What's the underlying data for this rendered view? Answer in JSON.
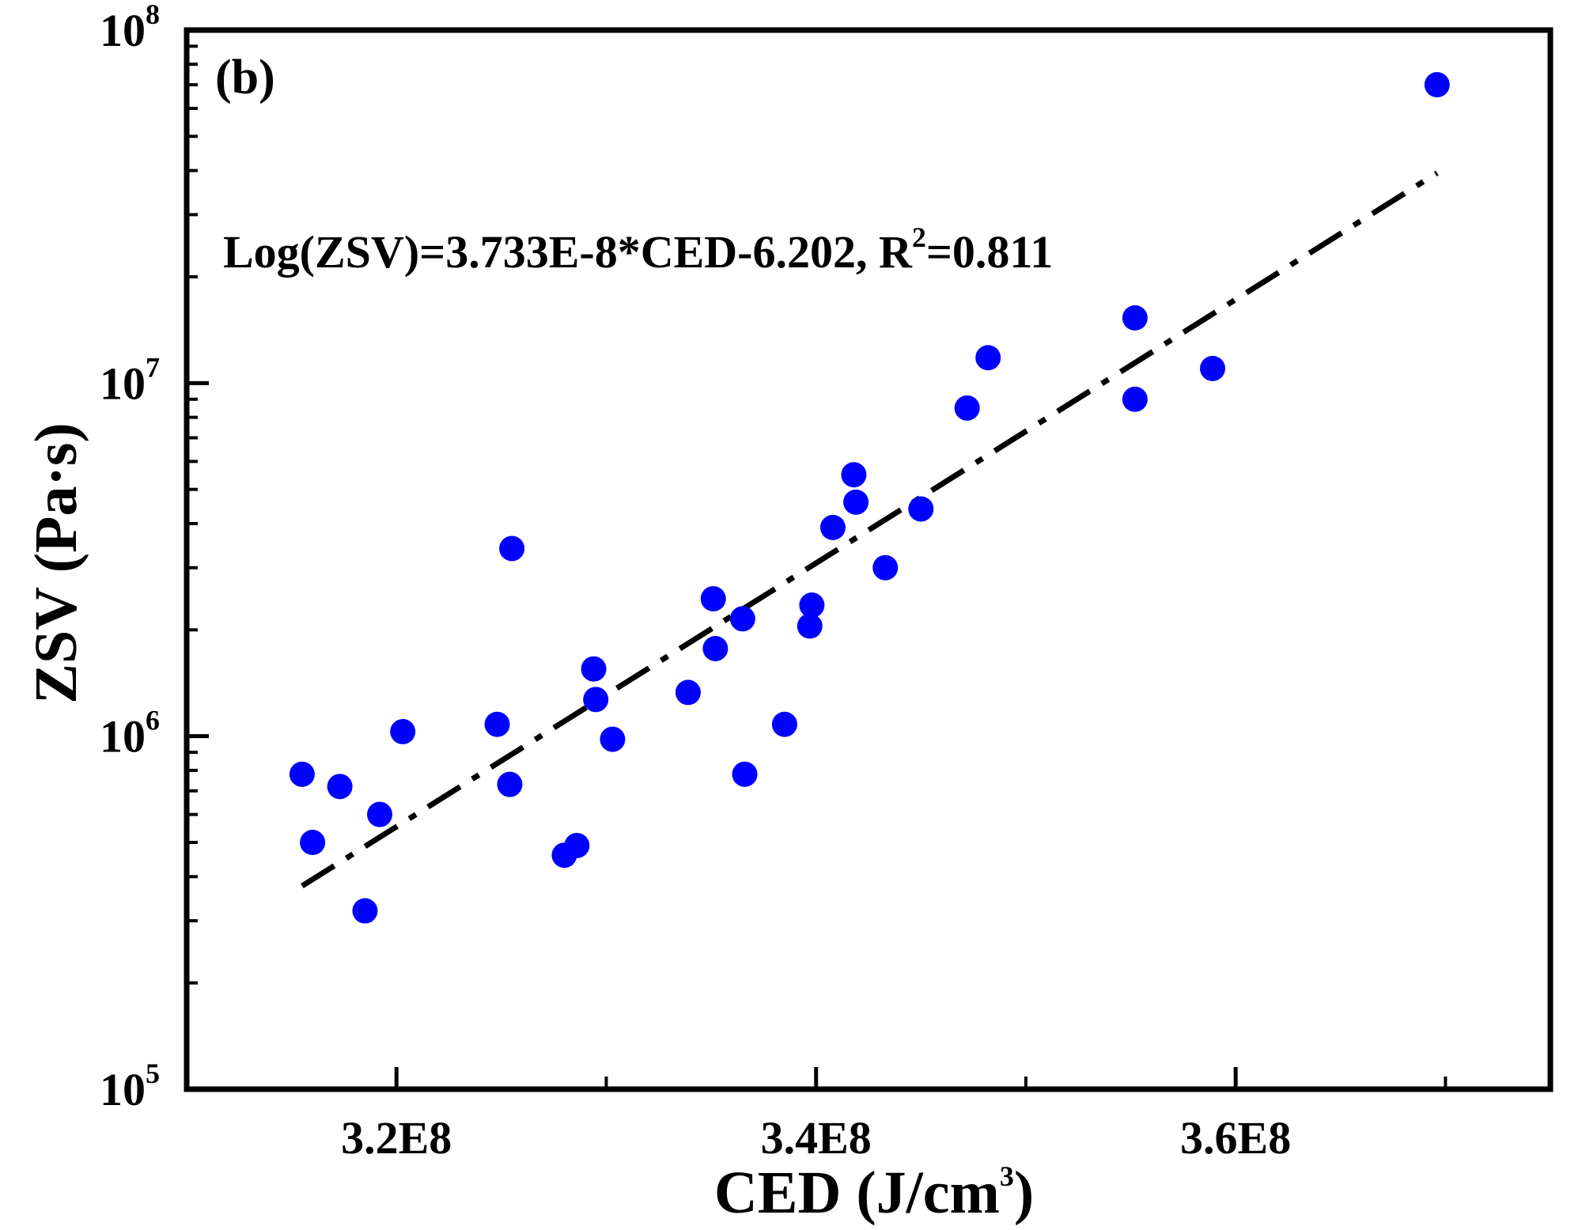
{
  "chart_data": {
    "type": "scatter",
    "panel_label": "(b)",
    "xlabel": {
      "text": "CED (J/cm",
      "sup": "3",
      "tail": ")"
    },
    "ylabel": "ZSV (Pa·s)",
    "x_scale": "linear",
    "y_scale": "log",
    "xlim": [
      310000000,
      375000000
    ],
    "ylim": [
      100000,
      100000000
    ],
    "x_ticks": [
      {
        "value": 320000000,
        "label": "3.2E8"
      },
      {
        "value": 340000000,
        "label": "3.4E8"
      },
      {
        "value": 360000000,
        "label": "3.6E8"
      }
    ],
    "x_minor_ticks": [
      330000000,
      350000000,
      370000000
    ],
    "y_ticks": [
      {
        "value": 100000,
        "base": "10",
        "exp": "5"
      },
      {
        "value": 1000000,
        "base": "10",
        "exp": "6"
      },
      {
        "value": 10000000,
        "base": "10",
        "exp": "7"
      },
      {
        "value": 100000000,
        "base": "10",
        "exp": "8"
      }
    ],
    "grid": false,
    "annotation": {
      "prefix": "Log(ZSV)=3.733E-8*CED-6.202, R",
      "sup": "2",
      "suffix": "=0.811"
    },
    "fit": {
      "slope": 3.733e-08,
      "intercept": -6.202,
      "x_range": [
        315500000,
        369600000
      ],
      "style": "dash-dot"
    },
    "points": [
      {
        "x": 315500000,
        "y": 780000
      },
      {
        "x": 316000000,
        "y": 500000
      },
      {
        "x": 317300000,
        "y": 720000
      },
      {
        "x": 318500000,
        "y": 320000
      },
      {
        "x": 319200000,
        "y": 600000
      },
      {
        "x": 320300000,
        "y": 1030000
      },
      {
        "x": 324800000,
        "y": 1080000
      },
      {
        "x": 325400000,
        "y": 730000
      },
      {
        "x": 325500000,
        "y": 3400000
      },
      {
        "x": 328000000,
        "y": 460000
      },
      {
        "x": 328600000,
        "y": 490000
      },
      {
        "x": 329400000,
        "y": 1550000
      },
      {
        "x": 329500000,
        "y": 1270000
      },
      {
        "x": 330300000,
        "y": 980000
      },
      {
        "x": 333900000,
        "y": 1330000
      },
      {
        "x": 335100000,
        "y": 2450000
      },
      {
        "x": 335200000,
        "y": 1770000
      },
      {
        "x": 336500000,
        "y": 2150000
      },
      {
        "x": 336600000,
        "y": 780000
      },
      {
        "x": 338500000,
        "y": 1080000
      },
      {
        "x": 339800000,
        "y": 2350000
      },
      {
        "x": 339700000,
        "y": 2050000
      },
      {
        "x": 340800000,
        "y": 3900000
      },
      {
        "x": 341800000,
        "y": 5500000
      },
      {
        "x": 341900000,
        "y": 4600000
      },
      {
        "x": 343300000,
        "y": 3000000
      },
      {
        "x": 345000000,
        "y": 4400000
      },
      {
        "x": 347200000,
        "y": 8500000
      },
      {
        "x": 348200000,
        "y": 11800000
      },
      {
        "x": 355200000,
        "y": 15300000
      },
      {
        "x": 355200000,
        "y": 9000000
      },
      {
        "x": 358900000,
        "y": 11000000
      },
      {
        "x": 369600000,
        "y": 70000000
      }
    ],
    "colors": {
      "points": "#0000ff",
      "fit": "#000000",
      "axes": "#000000"
    }
  }
}
